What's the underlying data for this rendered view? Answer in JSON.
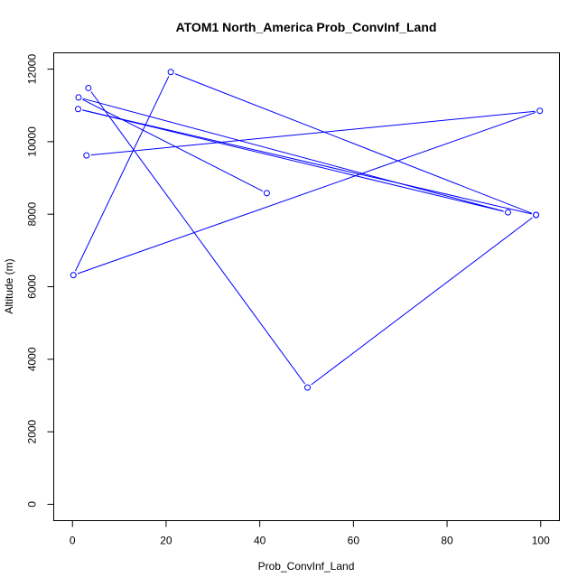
{
  "chart_data": {
    "type": "line",
    "title": "ATOM1 North_America Prob_ConvInf_Land",
    "xlabel": "Prob_ConvInf_Land",
    "ylabel": "Altitude (m)",
    "xlim": [
      -4,
      104
    ],
    "ylim": [
      -450,
      12450
    ],
    "xticks": [
      0,
      20,
      40,
      60,
      80,
      100
    ],
    "yticks": [
      0,
      2000,
      4000,
      6000,
      8000,
      10000,
      12000
    ],
    "grid": false,
    "legend": "none",
    "series": [
      {
        "color": "#0000ff",
        "marker": "open-circle",
        "points": [
          {
            "x": 41.5,
            "y": 8580
          },
          {
            "x": 1.3,
            "y": 11220
          },
          {
            "x": 93.0,
            "y": 8050
          },
          {
            "x": 1.2,
            "y": 10900
          },
          {
            "x": 99.0,
            "y": 7980
          },
          {
            "x": 21.0,
            "y": 11920
          },
          {
            "x": 0.2,
            "y": 6320
          },
          {
            "x": 99.8,
            "y": 10850
          },
          {
            "x": 3.0,
            "y": 9620
          }
        ]
      },
      {
        "color": "#0000ff",
        "marker": "open-circle",
        "points": [
          {
            "x": 3.4,
            "y": 11480
          },
          {
            "x": 50.2,
            "y": 3220
          },
          {
            "x": 99.0,
            "y": 7980
          }
        ]
      }
    ]
  }
}
